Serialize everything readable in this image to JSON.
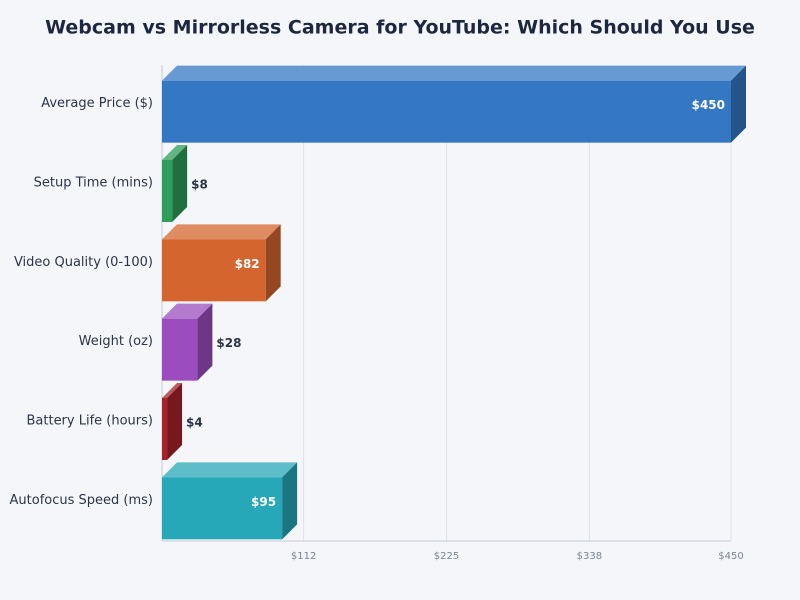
{
  "chart_data": {
    "type": "bar",
    "orientation": "horizontal",
    "title": "Webcam vs Mirrorless Camera for YouTube: Which Should You Use",
    "categories": [
      "Average Price ($)",
      "Setup Time (mins)",
      "Video Quality (0-100)",
      "Weight (oz)",
      "Battery Life (hours)",
      "Autofocus Speed (ms)"
    ],
    "values": [
      450,
      8,
      82,
      28,
      4,
      95
    ],
    "value_labels": [
      "$450",
      "$8",
      "$82",
      "$28",
      "$4",
      "$95"
    ],
    "colors": [
      "#3478c4",
      "#2e9e5a",
      "#d4652e",
      "#9b4dbf",
      "#a8222a",
      "#27a8b8"
    ],
    "xlim": [
      0,
      450
    ],
    "xticks": [
      {
        "value": 112,
        "label": "$112"
      },
      {
        "value": 225,
        "label": "$225"
      },
      {
        "value": 338,
        "label": "$338"
      },
      {
        "value": 450,
        "label": "$450"
      }
    ],
    "grid": true
  }
}
